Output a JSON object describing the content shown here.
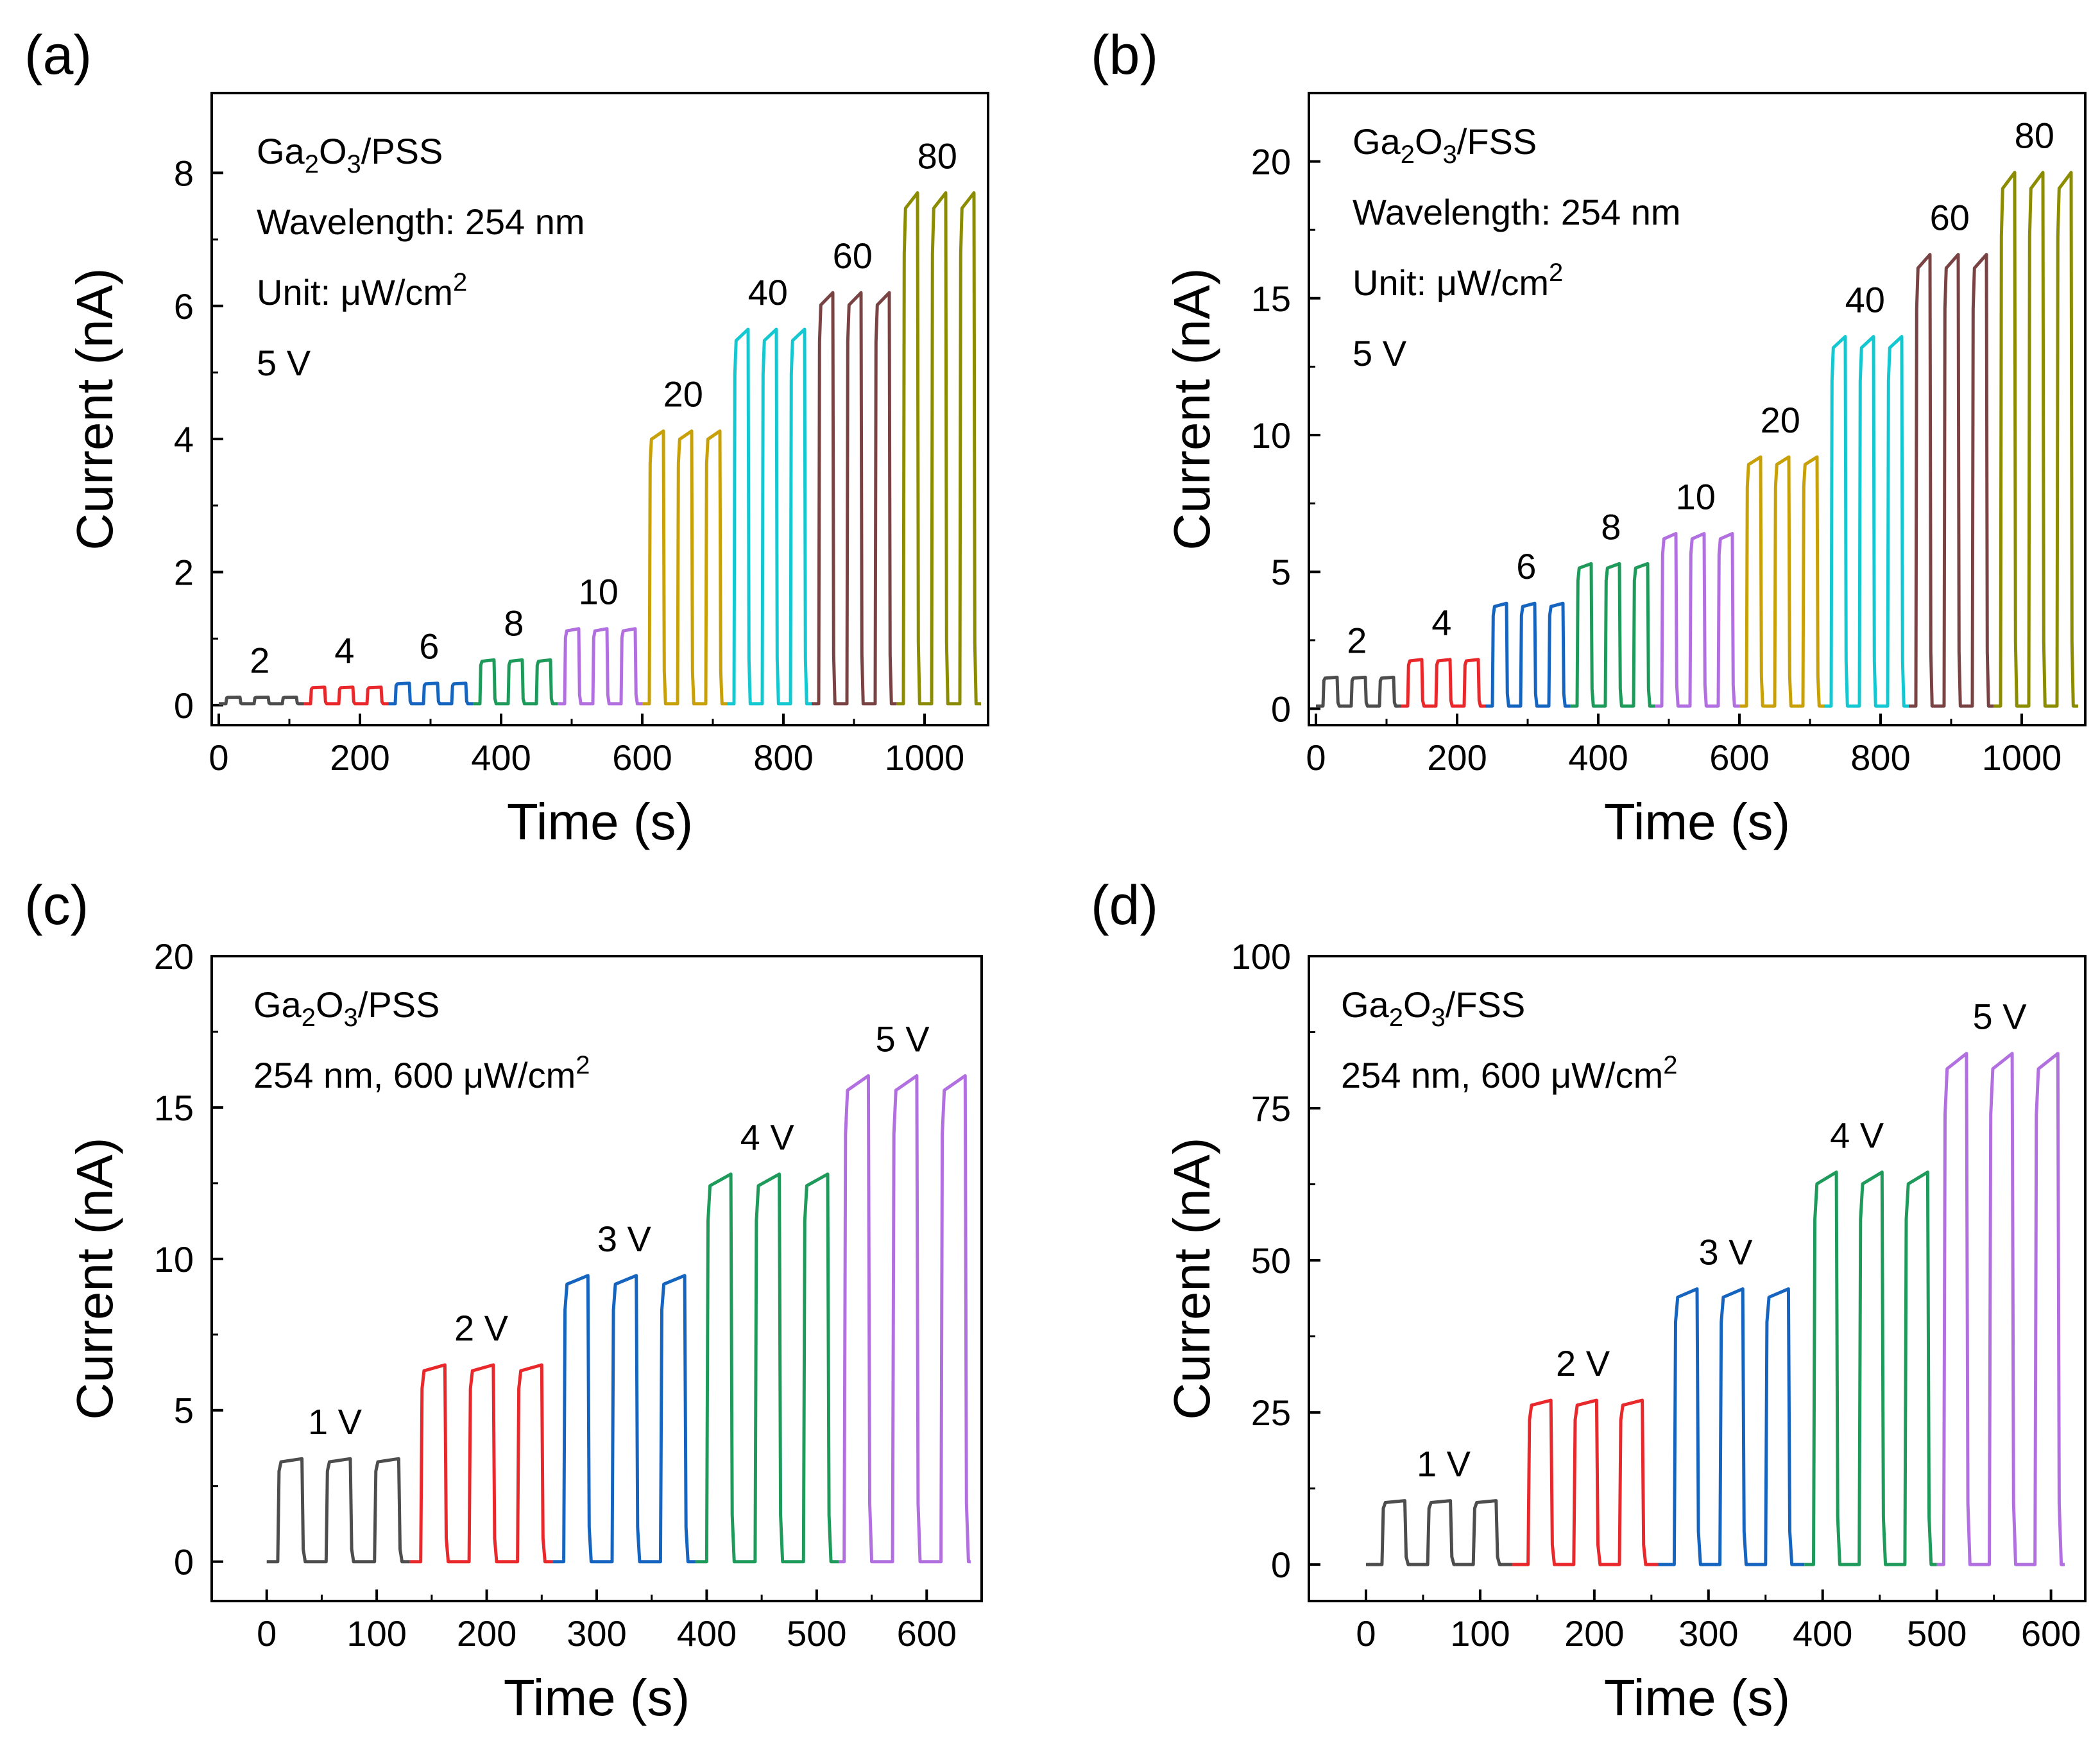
{
  "chart_data": [
    {
      "panel": "(a)",
      "type": "line",
      "xlabel": "Time (s)",
      "ylabel": "Current (nA)",
      "xlim": [
        -10,
        1090
      ],
      "ylim": [
        -0.3,
        9.2
      ],
      "xticks": [
        0,
        200,
        400,
        600,
        800,
        1000
      ],
      "yticks": [
        0,
        2,
        4,
        6,
        8
      ],
      "annotations": [
        {
          "main": "Ga",
          "sub1": "2",
          "mid": "O",
          "sub2": "3",
          "tail": "/PSS"
        },
        {
          "text": "Wavelength: 254 nm"
        },
        {
          "text": "Unit: μW/cm",
          "sup": "2"
        },
        {
          "text": "5 V"
        }
      ],
      "segment_params": {
        "on_duration": 20,
        "period": 40,
        "pulses": 3,
        "off_level": 0.02
      },
      "series": [
        {
          "name": "2",
          "color": "#4d4d4d",
          "start": 0,
          "end": 120,
          "on_value": 0.12,
          "label_x": 58
        },
        {
          "name": "4",
          "color": "#e8282b",
          "start": 120,
          "end": 240,
          "on_value": 0.27,
          "label_x": 178
        },
        {
          "name": "6",
          "color": "#1565c0",
          "start": 240,
          "end": 360,
          "on_value": 0.33,
          "label_x": 298
        },
        {
          "name": "8",
          "color": "#1e9a5a",
          "start": 360,
          "end": 480,
          "on_value": 0.68,
          "label_x": 418
        },
        {
          "name": "10",
          "color": "#b26fe0",
          "start": 480,
          "end": 600,
          "on_value": 1.15,
          "label_x": 538
        },
        {
          "name": "20",
          "color": "#c8a008",
          "start": 600,
          "end": 720,
          "on_value": 4.12,
          "label_x": 658
        },
        {
          "name": "40",
          "color": "#14c8d2",
          "start": 720,
          "end": 840,
          "on_value": 5.65,
          "label_x": 778
        },
        {
          "name": "60",
          "color": "#7a4343",
          "start": 840,
          "end": 960,
          "on_value": 6.2,
          "label_x": 898
        },
        {
          "name": "80",
          "color": "#8c8c00",
          "start": 960,
          "end": 1080,
          "on_value": 7.7,
          "label_x": 1018
        }
      ]
    },
    {
      "panel": "(b)",
      "type": "line",
      "xlabel": "Time (s)",
      "ylabel": "Current (nA)",
      "xlim": [
        -10,
        1090
      ],
      "ylim": [
        -0.6,
        22.5
      ],
      "xticks": [
        0,
        200,
        400,
        600,
        800,
        1000
      ],
      "yticks": [
        0,
        5,
        10,
        15,
        20
      ],
      "annotations": [
        {
          "main": "Ga",
          "sub1": "2",
          "mid": "O",
          "sub2": "3",
          "tail": "/FSS"
        },
        {
          "text": "Wavelength: 254 nm"
        },
        {
          "text": "Unit: μW/cm",
          "sup": "2"
        },
        {
          "text": "5 V"
        }
      ],
      "segment_params": {
        "on_duration": 20,
        "period": 40,
        "pulses": 3,
        "off_level": 0.1
      },
      "series": [
        {
          "name": "2",
          "color": "#4d4d4d",
          "start": 0,
          "end": 120,
          "on_value": 1.15,
          "label_x": 58
        },
        {
          "name": "4",
          "color": "#e8282b",
          "start": 120,
          "end": 240,
          "on_value": 1.8,
          "label_x": 178
        },
        {
          "name": "6",
          "color": "#1565c0",
          "start": 240,
          "end": 360,
          "on_value": 3.85,
          "label_x": 298
        },
        {
          "name": "8",
          "color": "#1e9a5a",
          "start": 360,
          "end": 480,
          "on_value": 5.3,
          "label_x": 418
        },
        {
          "name": "10",
          "color": "#b26fe0",
          "start": 480,
          "end": 600,
          "on_value": 6.4,
          "label_x": 538
        },
        {
          "name": "20",
          "color": "#c8a008",
          "start": 600,
          "end": 720,
          "on_value": 9.2,
          "label_x": 658
        },
        {
          "name": "40",
          "color": "#14c8d2",
          "start": 720,
          "end": 840,
          "on_value": 13.6,
          "label_x": 778
        },
        {
          "name": "60",
          "color": "#7a4343",
          "start": 840,
          "end": 960,
          "on_value": 16.6,
          "label_x": 898
        },
        {
          "name": "80",
          "color": "#8c8c00",
          "start": 960,
          "end": 1080,
          "on_value": 19.6,
          "label_x": 1018
        }
      ]
    },
    {
      "panel": "(c)",
      "type": "line",
      "xlabel": "Time (s)",
      "ylabel": "Current (nA)",
      "xlim": [
        -50,
        650
      ],
      "ylim": [
        -1.3,
        20
      ],
      "xticks": [
        0,
        100,
        200,
        300,
        400,
        500,
        600
      ],
      "yticks": [
        0,
        5,
        10,
        15,
        20
      ],
      "annotations": [
        {
          "main": "Ga",
          "sub1": "2",
          "mid": "O",
          "sub2": "3",
          "tail": "/PSS"
        },
        {
          "text": "254 nm, 600 μW/cm",
          "sup": "2"
        }
      ],
      "segment_params": {
        "on_duration": 22,
        "period": 44,
        "pulses": 3,
        "off_level": 0.0
      },
      "series": [
        {
          "name": "1 V",
          "color": "#4d4d4d",
          "start": 0,
          "end": 130,
          "on_value": 3.4,
          "label_x": 62
        },
        {
          "name": "2 V",
          "color": "#e8282b",
          "start": 130,
          "end": 260,
          "on_value": 6.5,
          "label_x": 195
        },
        {
          "name": "3 V",
          "color": "#1565c0",
          "start": 260,
          "end": 390,
          "on_value": 9.45,
          "label_x": 325
        },
        {
          "name": "4 V",
          "color": "#1e9a5a",
          "start": 390,
          "end": 520,
          "on_value": 12.8,
          "label_x": 455
        },
        {
          "name": "5 V",
          "color": "#b26fe0",
          "start": 520,
          "end": 640,
          "on_value": 16.05,
          "label_x": 578
        }
      ]
    },
    {
      "panel": "(d)",
      "type": "line",
      "xlabel": "Time (s)",
      "ylabel": "Current (nA)",
      "xlim": [
        -50,
        630
      ],
      "ylim": [
        -6,
        100
      ],
      "xticks": [
        0,
        100,
        200,
        300,
        400,
        500,
        600
      ],
      "yticks": [
        0,
        25,
        50,
        75,
        100
      ],
      "annotations": [
        {
          "main": "Ga",
          "sub1": "2",
          "mid": "O",
          "sub2": "3",
          "tail": "/FSS"
        },
        {
          "text": "254 nm, 600 μW/cm",
          "sup": "2"
        }
      ],
      "segment_params": {
        "on_duration": 20,
        "period": 40,
        "pulses": 3,
        "off_level": 0.0
      },
      "series": [
        {
          "name": "1 V",
          "color": "#4d4d4d",
          "start": 0,
          "end": 128,
          "on_value": 10.5,
          "label_x": 68
        },
        {
          "name": "2 V",
          "color": "#e8282b",
          "start": 128,
          "end": 256,
          "on_value": 27.0,
          "label_x": 190
        },
        {
          "name": "3 V",
          "color": "#1565c0",
          "start": 256,
          "end": 384,
          "on_value": 45.3,
          "label_x": 315
        },
        {
          "name": "4 V",
          "color": "#1e9a5a",
          "start": 384,
          "end": 500,
          "on_value": 64.5,
          "label_x": 430
        },
        {
          "name": "5 V",
          "color": "#b26fe0",
          "start": 500,
          "end": 612,
          "on_value": 84.0,
          "label_x": 555
        }
      ]
    }
  ]
}
